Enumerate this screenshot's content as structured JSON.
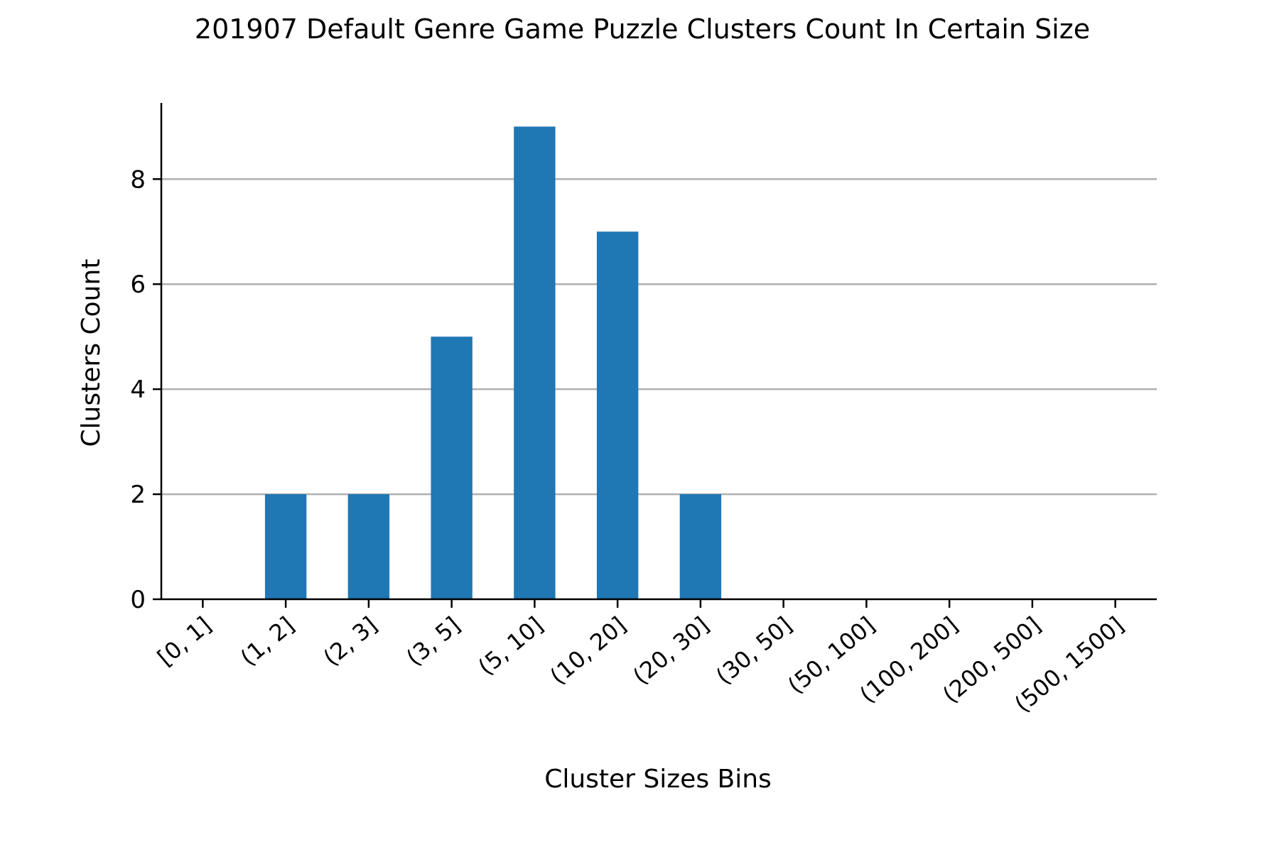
{
  "chart_data": {
    "type": "bar",
    "title": "201907 Default Genre Game Puzzle Clusters Count In Certain Size",
    "xlabel": "Cluster Sizes Bins",
    "ylabel": "Clusters Count",
    "categories": [
      "[0, 1]",
      "(1, 2]",
      "(2, 3]",
      "(3, 5]",
      "(5, 10]",
      "(10, 20]",
      "(20, 30]",
      "(30, 50]",
      "(50, 100]",
      "(100, 200]",
      "(200, 500]",
      "(500, 1500]"
    ],
    "values": [
      0,
      2,
      2,
      5,
      9,
      7,
      2,
      0,
      0,
      0,
      0,
      0
    ],
    "ylim": [
      0,
      9.45
    ],
    "yticks": [
      0,
      2,
      4,
      6,
      8
    ],
    "grid": "y",
    "bar_color": "#1f77b4",
    "grid_color": "#b0b0b0"
  }
}
